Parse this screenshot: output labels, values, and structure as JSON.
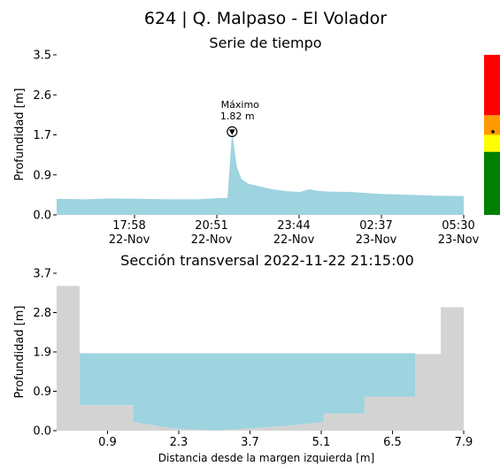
{
  "header": {
    "title": "624 | Q. Malpaso - El Volador"
  },
  "chart_data": [
    {
      "type": "area",
      "title": "Serie de tiempo",
      "xlabel": "",
      "ylabel": "Profundidad [m]",
      "ylim": [
        0.0,
        3.5
      ],
      "yticks": [
        "0.0",
        "0.9",
        "1.7",
        "2.6",
        "3.5"
      ],
      "xticks": [
        {
          "time": "17:58",
          "date": "22-Nov"
        },
        {
          "time": "20:51",
          "date": "22-Nov"
        },
        {
          "time": "23:44",
          "date": "22-Nov"
        },
        {
          "time": "02:37",
          "date": "23-Nov"
        },
        {
          "time": "05:30",
          "date": "23-Nov"
        }
      ],
      "xrange": [
        "2022-11-22 15:00",
        "2022-11-23 05:30"
      ],
      "series": [
        {
          "color": "#9ed3e0",
          "x": [
            "2022-11-22 15:00",
            "2022-11-22 16:00",
            "2022-11-22 17:00",
            "2022-11-22 18:00",
            "2022-11-22 19:00",
            "2022-11-22 20:00",
            "2022-11-22 20:50",
            "2022-11-22 21:05",
            "2022-11-22 21:15",
            "2022-11-22 21:25",
            "2022-11-22 21:35",
            "2022-11-22 21:50",
            "2022-11-22 22:15",
            "2022-11-22 22:40",
            "2022-11-22 23:10",
            "2022-11-22 23:40",
            "2022-11-23 00:00",
            "2022-11-23 00:15",
            "2022-11-23 00:40",
            "2022-11-23 01:30",
            "2022-11-23 02:30",
            "2022-11-23 03:30",
            "2022-11-23 04:30",
            "2022-11-23 05:30"
          ],
          "values": [
            0.35,
            0.34,
            0.36,
            0.35,
            0.34,
            0.34,
            0.37,
            0.37,
            1.82,
            1.05,
            0.78,
            0.68,
            0.62,
            0.56,
            0.52,
            0.5,
            0.56,
            0.53,
            0.51,
            0.5,
            0.46,
            0.44,
            0.42,
            0.41
          ]
        }
      ],
      "annotation": {
        "label": "Máximo",
        "value_text": "1.82 m",
        "x": "2022-11-22 21:15",
        "y": 1.82
      },
      "alert_scale": {
        "levels": [
          {
            "color": "#008000",
            "from": 0.0,
            "to": 1.38
          },
          {
            "color": "#ffff00",
            "from": 1.38,
            "to": 1.75
          },
          {
            "color": "#ff9900",
            "from": 1.75,
            "to": 2.18
          },
          {
            "color": "#ff0000",
            "from": 2.18,
            "to": 3.5
          }
        ],
        "marker_value": 1.82
      }
    },
    {
      "type": "area",
      "title": "Sección transversal 2022-11-22 21:15:00",
      "xlabel": "Distancia desde la margen izquierda [m]",
      "ylabel": "Profundidad [m]",
      "xlim": [
        -0.1,
        7.9
      ],
      "ylim": [
        0.0,
        3.7
      ],
      "xticks": [
        "0.9",
        "2.3",
        "3.7",
        "5.1",
        "6.5",
        "7.9"
      ],
      "yticks": [
        "0.0",
        "0.9",
        "1.9",
        "2.8",
        "3.7"
      ],
      "water_level": 1.82,
      "water_color": "#9ed3e0",
      "ground_color": "#d3d3d3",
      "profile": {
        "x": [
          -0.1,
          0.35,
          0.35,
          1.4,
          1.4,
          2.2,
          3.0,
          3.8,
          4.5,
          5.15,
          5.15,
          5.95,
          5.95,
          6.95,
          6.95,
          7.45,
          7.45,
          7.9
        ],
        "y": [
          3.4,
          3.4,
          0.6,
          0.6,
          0.2,
          0.05,
          0.0,
          0.06,
          0.12,
          0.2,
          0.4,
          0.4,
          0.8,
          0.8,
          1.8,
          1.8,
          2.9,
          2.9
        ]
      }
    }
  ]
}
